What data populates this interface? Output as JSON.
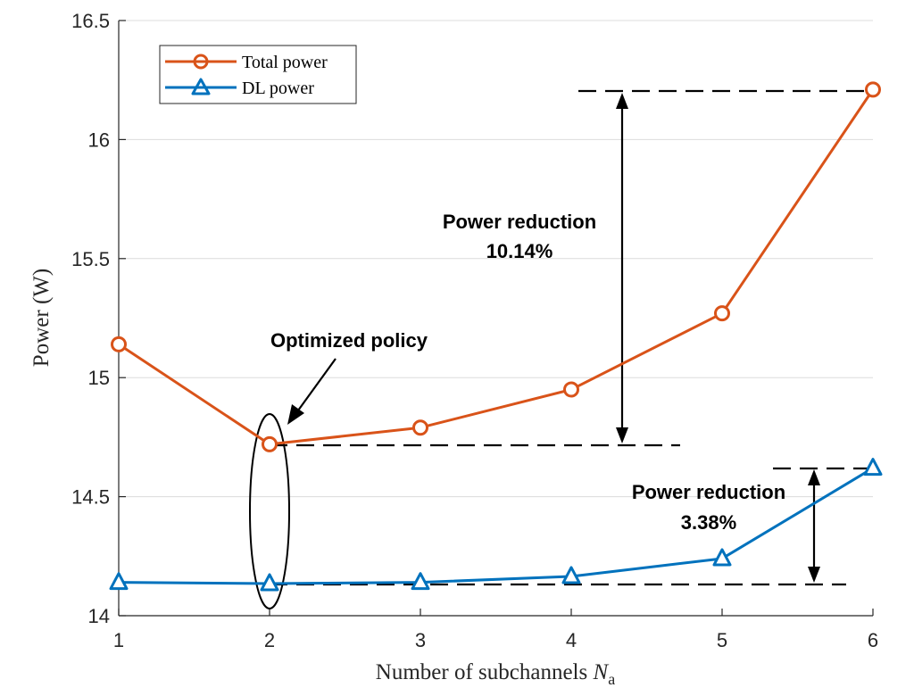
{
  "chart_data": {
    "type": "line",
    "title": "",
    "xlabel_prefix": "Number of subchannels",
    "xlabel_var": "N",
    "xlabel_sub": "a",
    "ylabel": "Power (W)",
    "x": [
      1,
      2,
      3,
      4,
      5,
      6
    ],
    "xlim": [
      1,
      6
    ],
    "ylim": [
      14,
      16.5
    ],
    "x_ticks": [
      "1",
      "2",
      "3",
      "4",
      "5",
      "6"
    ],
    "y_ticks": [
      "14",
      "14.5",
      "15",
      "15.5",
      "16",
      "16.5"
    ],
    "grid": "horizontal",
    "legend_position": "top-left",
    "series": [
      {
        "name": "Total power",
        "marker": "circle",
        "color": "#d95319",
        "values": [
          15.14,
          14.72,
          14.79,
          14.95,
          15.27,
          16.21
        ]
      },
      {
        "name": "DL power",
        "marker": "triangle",
        "color": "#0072bd",
        "values": [
          14.14,
          14.135,
          14.14,
          14.165,
          14.24,
          14.62
        ]
      }
    ],
    "annotations": {
      "optimized": "Optimized policy",
      "reduction_total_line1": "Power reduction",
      "reduction_total_line2": "10.14%",
      "reduction_dl_line1": "Power reduction",
      "reduction_dl_line2": "3.38%"
    }
  }
}
